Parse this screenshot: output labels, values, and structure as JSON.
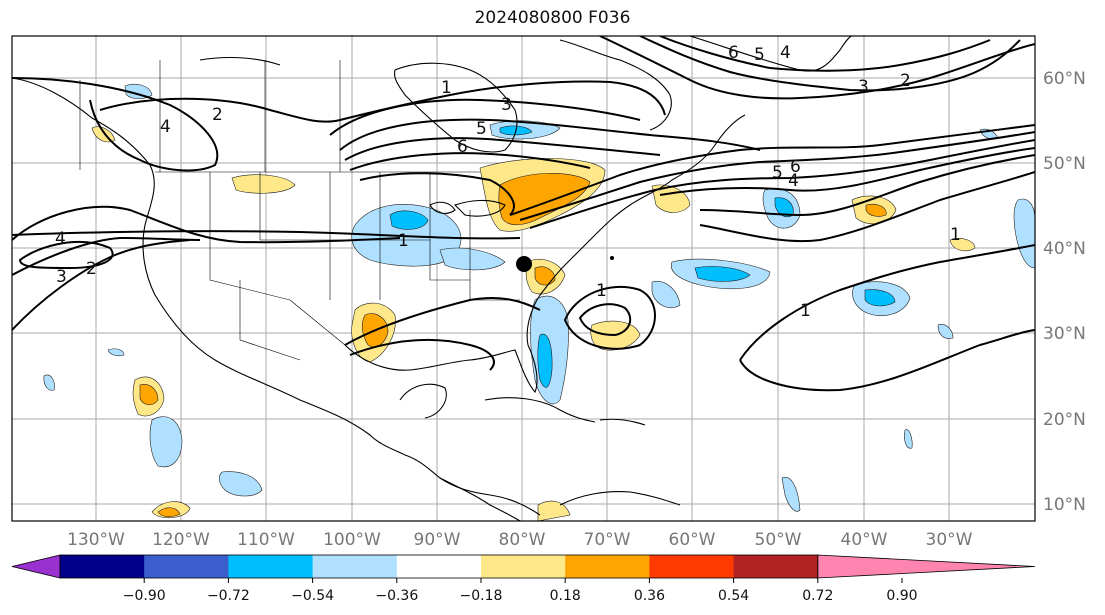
{
  "title": "2024080800 F036",
  "lon_labels": [
    "130°W",
    "120°W",
    "110°W",
    "100°W",
    "90°W",
    "80°W",
    "70°W",
    "60°W",
    "50°W",
    "40°W",
    "30°W"
  ],
  "lat_labels": [
    "60°N",
    "50°N",
    "40°N",
    "30°N",
    "20°N",
    "10°N"
  ],
  "colorbar": {
    "ticks": [
      "−0.90",
      "−0.72",
      "−0.54",
      "−0.36",
      "−0.18",
      "0.18",
      "0.36",
      "0.54",
      "0.72",
      "0.90"
    ],
    "colors": [
      "#9b30d0",
      "#00008b",
      "#3a5fcd",
      "#00bfff",
      "#b0e0ff",
      "#ffffff",
      "#ffe88a",
      "#ffa500",
      "#ff3a00",
      "#b22222",
      "#ff85b0"
    ]
  },
  "contour_labels": [
    "1",
    "3",
    "5",
    "6",
    "2",
    "4",
    "6",
    "5",
    "4",
    "3",
    "2",
    "6",
    "5",
    "4",
    "1",
    "4",
    "3",
    "2",
    "1",
    "1",
    "1"
  ],
  "marker": "storm-center-marker"
}
